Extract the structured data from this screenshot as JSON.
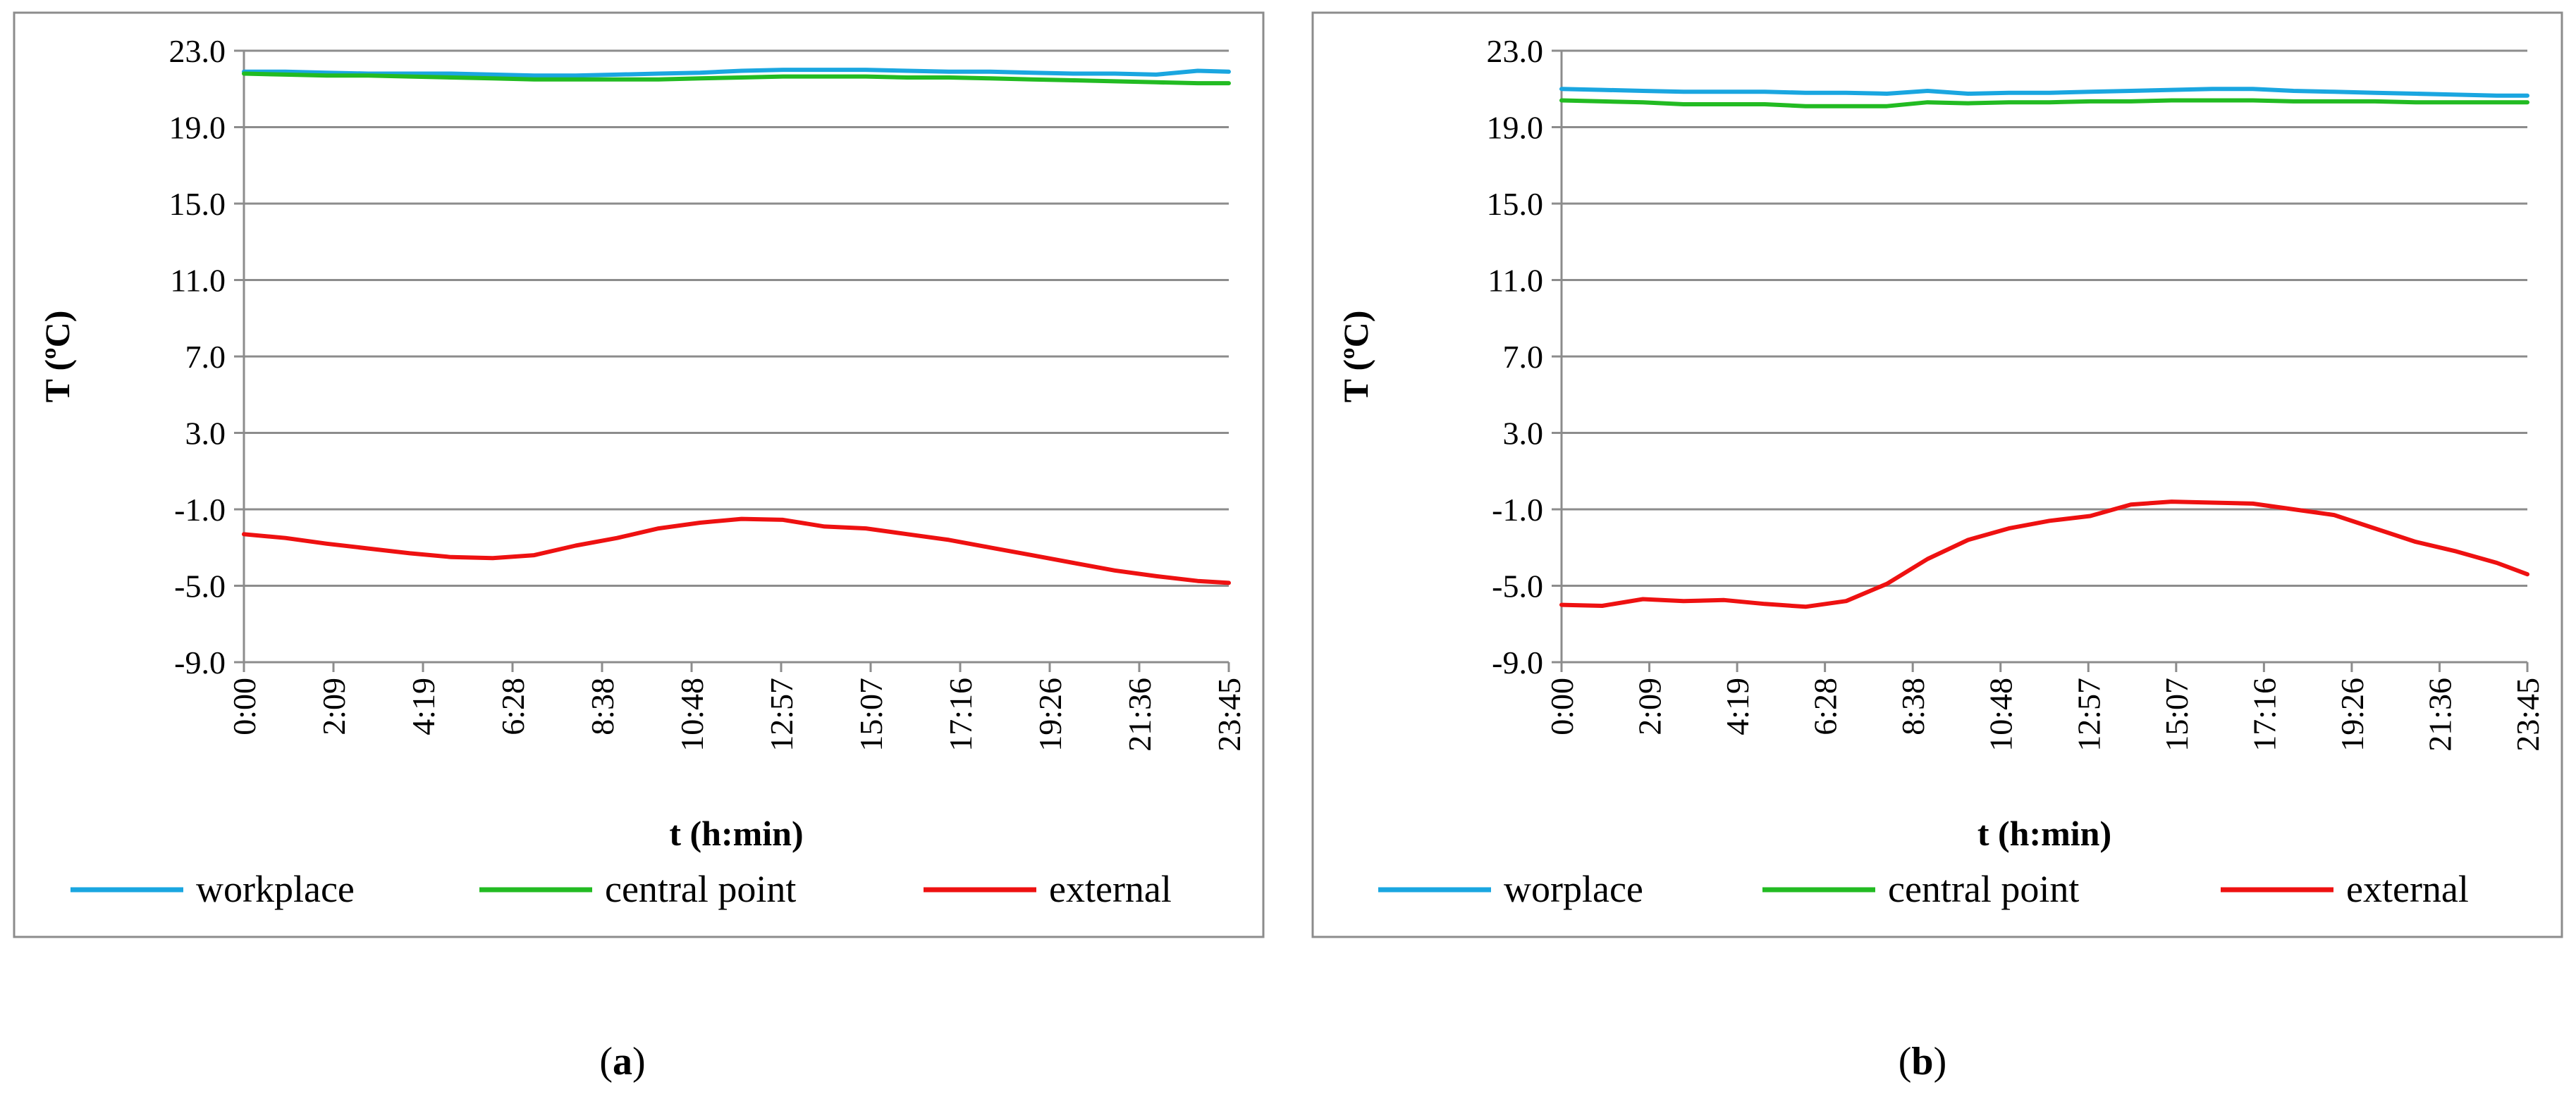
{
  "figure": {
    "panels_count": 2
  },
  "chart_data": [
    {
      "type": "line",
      "panel_label": "a",
      "xlabel": "t (h:min)",
      "ylabel": "T (ºC)",
      "ylim": [
        -9.0,
        23.0
      ],
      "yticks": [
        "23.0",
        "19.0",
        "15.0",
        "11.0",
        "7.0",
        "3.0",
        "-1.0",
        "-5.0",
        "-9.0"
      ],
      "xlim_hours": [
        0,
        23.75
      ],
      "xticks": [
        "0:00",
        "2:09",
        "4:19",
        "6:28",
        "8:38",
        "10:48",
        "12:57",
        "15:07",
        "17:16",
        "19:26",
        "21:36",
        "23:45"
      ],
      "grid": true,
      "legend_position": "bottom",
      "x_hours": [
        0,
        1,
        2,
        3,
        4,
        5,
        6,
        7,
        8,
        9,
        10,
        11,
        12,
        13,
        14,
        15,
        16,
        17,
        18,
        19,
        20,
        21,
        22,
        23,
        23.75
      ],
      "series": [
        {
          "name": "workplace",
          "color": "#1aa6e0",
          "values": [
            21.9,
            21.9,
            21.85,
            21.8,
            21.8,
            21.8,
            21.75,
            21.7,
            21.7,
            21.75,
            21.8,
            21.85,
            21.95,
            22.0,
            22.0,
            22.0,
            21.95,
            21.9,
            21.9,
            21.85,
            21.8,
            21.8,
            21.75,
            21.95,
            21.9
          ]
        },
        {
          "name": "central point",
          "color": "#22bb22",
          "values": [
            21.8,
            21.75,
            21.7,
            21.7,
            21.65,
            21.6,
            21.55,
            21.5,
            21.5,
            21.5,
            21.5,
            21.55,
            21.6,
            21.65,
            21.65,
            21.65,
            21.6,
            21.6,
            21.55,
            21.5,
            21.45,
            21.4,
            21.35,
            21.3,
            21.3
          ]
        },
        {
          "name": "external",
          "color": "#ee1111",
          "values": [
            -2.3,
            -2.5,
            -2.8,
            -3.05,
            -3.3,
            -3.5,
            -3.55,
            -3.4,
            -2.9,
            -2.5,
            -2.0,
            -1.7,
            -1.5,
            -1.55,
            -1.9,
            -2.0,
            -2.3,
            -2.6,
            -3.0,
            -3.4,
            -3.8,
            -4.2,
            -4.5,
            -4.75,
            -4.85
          ]
        }
      ]
    },
    {
      "type": "line",
      "panel_label": "b",
      "xlabel": "t (h:min)",
      "ylabel": "T (ºC)",
      "ylim": [
        -9.0,
        23.0
      ],
      "yticks": [
        "23.0",
        "19.0",
        "15.0",
        "11.0",
        "7.0",
        "3.0",
        "-1.0",
        "-5.0",
        "-9.0"
      ],
      "xlim_hours": [
        0,
        23.75
      ],
      "xticks": [
        "0:00",
        "2:09",
        "4:19",
        "6:28",
        "8:38",
        "10:48",
        "12:57",
        "15:07",
        "17:16",
        "19:26",
        "21:36",
        "23:45"
      ],
      "grid": true,
      "legend_position": "bottom",
      "x_hours": [
        0,
        1,
        2,
        3,
        4,
        5,
        6,
        7,
        8,
        9,
        10,
        11,
        12,
        13,
        14,
        15,
        16,
        17,
        18,
        19,
        20,
        21,
        22,
        23,
        23.75
      ],
      "series": [
        {
          "name": "worplace",
          "color": "#1aa6e0",
          "values": [
            21.0,
            20.95,
            20.9,
            20.85,
            20.85,
            20.85,
            20.8,
            20.8,
            20.75,
            20.9,
            20.75,
            20.8,
            20.8,
            20.85,
            20.9,
            20.95,
            21.0,
            21.0,
            20.9,
            20.85,
            20.8,
            20.75,
            20.7,
            20.65,
            20.65
          ]
        },
        {
          "name": "central point",
          "color": "#22bb22",
          "values": [
            20.4,
            20.35,
            20.3,
            20.2,
            20.2,
            20.2,
            20.1,
            20.1,
            20.1,
            20.3,
            20.25,
            20.3,
            20.3,
            20.35,
            20.35,
            20.4,
            20.4,
            20.4,
            20.35,
            20.35,
            20.35,
            20.3,
            20.3,
            20.3,
            20.3
          ]
        },
        {
          "name": "external",
          "color": "#ee1111",
          "values": [
            -6.0,
            -6.05,
            -5.7,
            -5.8,
            -5.75,
            -5.95,
            -6.1,
            -5.8,
            -4.9,
            -3.6,
            -2.6,
            -2.0,
            -1.6,
            -1.35,
            -0.75,
            -0.6,
            -0.65,
            -0.7,
            -1.0,
            -1.3,
            -2.0,
            -2.7,
            -3.2,
            -3.8,
            -4.4
          ]
        }
      ]
    }
  ]
}
